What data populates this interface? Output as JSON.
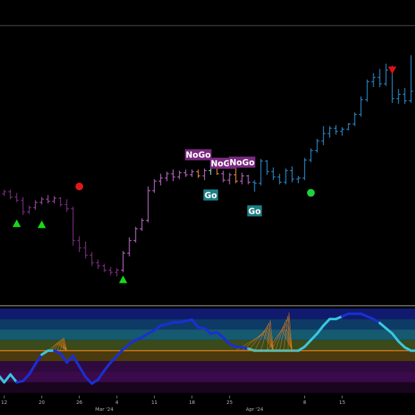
{
  "colors": {
    "background": "#000000",
    "divider": "#bfbfbf",
    "go_tag": "#1f7f86",
    "nogo_tag": "#7a2a80",
    "up_marker": "#18d818",
    "down_marker": "#e01010",
    "dot_red": "#e01818",
    "dot_green": "#1ed23a",
    "zero_line": "#e07a1a",
    "band_colors": [
      "#101a6e",
      "#0e3a66",
      "#155a6e",
      "#3a4a1a",
      "#4a3a0e",
      "#2e0a3e",
      "#3a0a4a",
      "#1a051e"
    ]
  },
  "chart_data": [
    {
      "type": "ohlc",
      "series": [
        {
          "values": [
            {
              "x": 0,
              "o": 103.0,
              "h": 104.0,
              "l": 99.5,
              "c": 101.5,
              "color": "#7b2d82"
            },
            {
              "x": 1,
              "o": 101.5,
              "h": 103.5,
              "l": 100.5,
              "c": 102.5,
              "color": "#7b2d82"
            },
            {
              "x": 2,
              "o": 102.5,
              "h": 103.5,
              "l": 99.0,
              "c": 100.0,
              "color": "#7b2d82"
            },
            {
              "x": 3,
              "o": 100.0,
              "h": 102.0,
              "l": 97.5,
              "c": 98.5,
              "color": "#7b2d82"
            },
            {
              "x": 4,
              "o": 98.5,
              "h": 100.0,
              "l": 91.5,
              "c": 93.0,
              "color": "#7b2d82"
            },
            {
              "x": 5,
              "o": 93.0,
              "h": 96.0,
              "l": 92.0,
              "c": 95.0,
              "color": "#7b2d82"
            },
            {
              "x": 6,
              "o": 95.0,
              "h": 98.5,
              "l": 94.0,
              "c": 97.5,
              "color": "#9a4aa4"
            },
            {
              "x": 7,
              "o": 97.5,
              "h": 100.0,
              "l": 96.5,
              "c": 99.0,
              "color": "#9a4aa4"
            },
            {
              "x": 8,
              "o": 99.0,
              "h": 101.0,
              "l": 97.0,
              "c": 98.0,
              "color": "#9a4aa4"
            },
            {
              "x": 9,
              "o": 98.0,
              "h": 100.5,
              "l": 97.0,
              "c": 99.5,
              "color": "#9a4aa4"
            },
            {
              "x": 10,
              "o": 99.5,
              "h": 100.0,
              "l": 95.5,
              "c": 96.5,
              "color": "#7b2d82"
            },
            {
              "x": 11,
              "o": 96.5,
              "h": 99.0,
              "l": 93.0,
              "c": 94.5,
              "color": "#7b2d82"
            },
            {
              "x": 12,
              "o": 94.5,
              "h": 95.5,
              "l": 77.0,
              "c": 79.5,
              "color": "#7b2d82"
            },
            {
              "x": 13,
              "o": 79.5,
              "h": 81.5,
              "l": 74.0,
              "c": 76.0,
              "color": "#7b2d82"
            },
            {
              "x": 14,
              "o": 76.0,
              "h": 79.0,
              "l": 71.0,
              "c": 72.5,
              "color": "#7b2d82"
            },
            {
              "x": 15,
              "o": 72.5,
              "h": 74.0,
              "l": 67.5,
              "c": 69.0,
              "color": "#7b2d82"
            },
            {
              "x": 16,
              "o": 69.0,
              "h": 70.5,
              "l": 66.0,
              "c": 67.5,
              "color": "#7b2d82"
            },
            {
              "x": 17,
              "o": 67.5,
              "h": 68.5,
              "l": 64.5,
              "c": 65.5,
              "color": "#7b2d82"
            },
            {
              "x": 18,
              "o": 65.5,
              "h": 67.0,
              "l": 63.0,
              "c": 64.5,
              "color": "#7b2d82"
            },
            {
              "x": 19,
              "o": 64.5,
              "h": 66.5,
              "l": 62.5,
              "c": 65.5,
              "color": "#7b2d82"
            },
            {
              "x": 20,
              "o": 65.5,
              "h": 74.5,
              "l": 64.5,
              "c": 73.5,
              "color": "#b267bd"
            },
            {
              "x": 21,
              "o": 73.5,
              "h": 81.0,
              "l": 72.0,
              "c": 79.5,
              "color": "#b267bd"
            },
            {
              "x": 22,
              "o": 79.5,
              "h": 86.0,
              "l": 78.5,
              "c": 85.0,
              "color": "#b267bd"
            },
            {
              "x": 23,
              "o": 85.0,
              "h": 90.0,
              "l": 84.0,
              "c": 89.0,
              "color": "#b267bd"
            },
            {
              "x": 24,
              "o": 89.0,
              "h": 105.0,
              "l": 88.0,
              "c": 103.0,
              "color": "#b267bd"
            },
            {
              "x": 25,
              "o": 103.0,
              "h": 108.5,
              "l": 102.0,
              "c": 107.5,
              "color": "#b267bd"
            },
            {
              "x": 26,
              "o": 107.5,
              "h": 111.0,
              "l": 105.5,
              "c": 109.0,
              "color": "#b267bd"
            },
            {
              "x": 27,
              "o": 109.0,
              "h": 112.0,
              "l": 107.5,
              "c": 111.0,
              "color": "#b267bd"
            },
            {
              "x": 28,
              "o": 111.0,
              "h": 113.0,
              "l": 107.5,
              "c": 109.5,
              "color": "#b267bd"
            },
            {
              "x": 29,
              "o": 109.5,
              "h": 112.5,
              "l": 108.5,
              "c": 111.5,
              "color": "#b267bd"
            },
            {
              "x": 30,
              "o": 111.5,
              "h": 113.0,
              "l": 109.5,
              "c": 110.5,
              "color": "#b267bd"
            },
            {
              "x": 31,
              "o": 110.5,
              "h": 113.0,
              "l": 109.5,
              "c": 112.0,
              "color": "#b267bd"
            },
            {
              "x": 32,
              "o": 112.0,
              "h": 113.0,
              "l": 109.0,
              "c": 110.0,
              "color": "#e0853a"
            },
            {
              "x": 33,
              "o": 110.0,
              "h": 113.5,
              "l": 108.0,
              "c": 112.5,
              "color": "#b267bd"
            },
            {
              "x": 34,
              "o": 112.5,
              "h": 115.5,
              "l": 110.5,
              "c": 114.0,
              "color": "#89d9b8"
            },
            {
              "x": 35,
              "o": 114.0,
              "h": 115.0,
              "l": 110.5,
              "c": 111.0,
              "color": "#e0853a"
            },
            {
              "x": 36,
              "o": 111.0,
              "h": 112.5,
              "l": 107.0,
              "c": 108.0,
              "color": "#b267bd"
            },
            {
              "x": 37,
              "o": 108.0,
              "h": 111.5,
              "l": 106.0,
              "c": 110.5,
              "color": "#b267bd"
            },
            {
              "x": 38,
              "o": 110.5,
              "h": 116.0,
              "l": 106.5,
              "c": 107.5,
              "color": "#e0853a"
            },
            {
              "x": 39,
              "o": 107.5,
              "h": 111.5,
              "l": 106.0,
              "c": 110.0,
              "color": "#b267bd"
            },
            {
              "x": 40,
              "o": 110.0,
              "h": 110.5,
              "l": 106.0,
              "c": 107.0,
              "color": "#b267bd"
            },
            {
              "x": 41,
              "o": 107.0,
              "h": 108.0,
              "l": 102.5,
              "c": 106.5,
              "color": "#2a88c8"
            },
            {
              "x": 42,
              "o": 106.5,
              "h": 118.0,
              "l": 105.5,
              "c": 117.0,
              "color": "#2a88c8"
            },
            {
              "x": 43,
              "o": 117.0,
              "h": 117.5,
              "l": 110.5,
              "c": 112.0,
              "color": "#2a88c8"
            },
            {
              "x": 44,
              "o": 112.0,
              "h": 114.0,
              "l": 108.0,
              "c": 109.5,
              "color": "#2a88c8"
            },
            {
              "x": 45,
              "o": 109.5,
              "h": 111.0,
              "l": 106.0,
              "c": 107.0,
              "color": "#2a88c8"
            },
            {
              "x": 46,
              "o": 107.0,
              "h": 113.5,
              "l": 106.0,
              "c": 112.5,
              "color": "#2a88c8"
            },
            {
              "x": 47,
              "o": 112.5,
              "h": 114.5,
              "l": 107.0,
              "c": 108.5,
              "color": "#2a88c8"
            },
            {
              "x": 48,
              "o": 108.5,
              "h": 110.0,
              "l": 106.5,
              "c": 109.0,
              "color": "#2a88c8"
            },
            {
              "x": 49,
              "o": 109.0,
              "h": 118.5,
              "l": 108.0,
              "c": 117.5,
              "color": "#2a88c8"
            },
            {
              "x": 50,
              "o": 117.5,
              "h": 123.0,
              "l": 116.5,
              "c": 122.0,
              "color": "#2a88c8"
            },
            {
              "x": 51,
              "o": 122.0,
              "h": 127.5,
              "l": 121.0,
              "c": 126.5,
              "color": "#2a88c8"
            },
            {
              "x": 52,
              "o": 126.5,
              "h": 133.5,
              "l": 124.5,
              "c": 130.0,
              "color": "#2a88c8"
            },
            {
              "x": 53,
              "o": 130.0,
              "h": 133.5,
              "l": 128.0,
              "c": 132.5,
              "color": "#2a88c8"
            },
            {
              "x": 54,
              "o": 132.5,
              "h": 134.0,
              "l": 129.5,
              "c": 131.0,
              "color": "#2a88c8"
            },
            {
              "x": 55,
              "o": 131.0,
              "h": 133.0,
              "l": 129.0,
              "c": 132.0,
              "color": "#2a88c8"
            },
            {
              "x": 56,
              "o": 132.0,
              "h": 135.0,
              "l": 131.5,
              "c": 134.5,
              "color": "#2a88c8"
            },
            {
              "x": 57,
              "o": 134.5,
              "h": 140.0,
              "l": 133.5,
              "c": 139.0,
              "color": "#2a88c8"
            },
            {
              "x": 58,
              "o": 139.0,
              "h": 147.5,
              "l": 138.0,
              "c": 146.0,
              "color": "#2a88c8"
            },
            {
              "x": 59,
              "o": 146.0,
              "h": 155.5,
              "l": 145.0,
              "c": 154.5,
              "color": "#2a88c8"
            },
            {
              "x": 60,
              "o": 154.5,
              "h": 158.5,
              "l": 152.0,
              "c": 156.5,
              "color": "#2a88c8"
            },
            {
              "x": 61,
              "o": 156.5,
              "h": 160.5,
              "l": 152.0,
              "c": 153.5,
              "color": "#2a88c8"
            },
            {
              "x": 62,
              "o": 153.5,
              "h": 163.0,
              "l": 152.5,
              "c": 160.0,
              "color": "#2a88c8"
            },
            {
              "x": 63,
              "o": 160.0,
              "h": 162.0,
              "l": 144.5,
              "c": 146.5,
              "color": "#2a88c8"
            },
            {
              "x": 64,
              "o": 146.5,
              "h": 151.0,
              "l": 144.0,
              "c": 148.5,
              "color": "#2a88c8"
            },
            {
              "x": 65,
              "o": 148.5,
              "h": 151.5,
              "l": 144.0,
              "c": 145.5,
              "color": "#2a88c8"
            },
            {
              "x": 66,
              "o": 145.5,
              "h": 167.0,
              "l": 144.5,
              "c": 150.0,
              "color": "#2a88c8"
            },
            {
              "x": 67,
              "o": 150.0,
              "h": 151.5,
              "l": 138.0,
              "c": 141.5,
              "color": "#7ec9a8"
            },
            {
              "x": 68,
              "o": 141.5,
              "h": 144.5,
              "l": 139.5,
              "c": 143.0,
              "color": "#7ec9a8"
            },
            {
              "x": 69,
              "o": 143.0,
              "h": 146.0,
              "l": 136.0,
              "c": 138.0,
              "color": "#7ec9a8"
            }
          ]
        }
      ],
      "tags": [
        {
          "label": "NoGo",
          "bar": 32,
          "price": 120.0,
          "kind": "nogo"
        },
        {
          "label": "Go",
          "bar": 34,
          "price": 101.0,
          "kind": "go"
        },
        {
          "label": "NoGo",
          "bar": 36,
          "price": 116.0,
          "kind": "nogo"
        },
        {
          "label": "NoGo",
          "bar": 39,
          "price": 116.5,
          "kind": "nogo"
        },
        {
          "label": "Go",
          "bar": 41,
          "price": 93.5,
          "kind": "go"
        }
      ],
      "markers": [
        {
          "shape": "triangle-up",
          "bar": 3,
          "price": 87.5,
          "color": "up_marker"
        },
        {
          "shape": "triangle-up",
          "bar": 7,
          "price": 87.0,
          "color": "up_marker"
        },
        {
          "shape": "triangle-up",
          "bar": 20,
          "price": 61.0,
          "color": "up_marker"
        },
        {
          "shape": "triangle-down",
          "bar": 63,
          "price": 160.0,
          "color": "down_marker"
        },
        {
          "shape": "dot",
          "bar": 13,
          "price": 105.0,
          "color": "dot_red"
        },
        {
          "shape": "dot",
          "bar": 50,
          "price": 102.0,
          "color": "dot_green"
        }
      ]
    },
    {
      "type": "line",
      "ylim": [
        -3.2,
        3.2
      ],
      "zero": 0.0,
      "series": [
        {
          "values": [
            -1.8,
            -2.4,
            -1.8,
            -2.4,
            -2.3,
            -1.8,
            -1.0,
            -0.3,
            0.0,
            0.0,
            -0.2,
            -0.9,
            -0.4,
            -1.2,
            -2.0,
            -2.5,
            -2.2,
            -1.5,
            -0.9,
            -0.4,
            0.1,
            0.5,
            0.8,
            1.0,
            1.3,
            1.55,
            1.9,
            2.0,
            2.15,
            2.15,
            2.25,
            2.35,
            1.75,
            1.7,
            1.3,
            1.4,
            1.0,
            0.5,
            0.3,
            0.25,
            0.15,
            0.0,
            0.0,
            0.0,
            0.0,
            0.0,
            0.0,
            0.0,
            0.0,
            0.3,
            0.8,
            1.3,
            1.9,
            2.4,
            2.4,
            2.6,
            2.8,
            2.8,
            2.8,
            2.6,
            2.4,
            2.1,
            1.7,
            1.3,
            0.7,
            0.25,
            0.0,
            0.0,
            0.0,
            0.0
          ],
          "colors": [
            "#39c6e0",
            "#39c6e0",
            "#39c6e0",
            "#39c6e0",
            "#1a2fd4",
            "#1a2fd4",
            "#1a2fd4",
            "#1a2fd4",
            "#39c6e0",
            "#39c6e0",
            "#1a2fd4",
            "#1a2fd4",
            "#1a2fd4",
            "#1a2fd4",
            "#1a2fd4",
            "#1a2fd4",
            "#1a2fd4",
            "#1a2fd4",
            "#1a2fd4",
            "#1a2fd4",
            "#1a2fd4",
            "#1a2fd4",
            "#1a2fd4",
            "#1a2fd4",
            "#1a2fd4",
            "#1a2fd4",
            "#1a2fd4",
            "#1a2fd4",
            "#1a2fd4",
            "#1a2fd4",
            "#1a2fd4",
            "#1a2fd4",
            "#1a2fd4",
            "#1a2fd4",
            "#1a2fd4",
            "#1a2fd4",
            "#1a2fd4",
            "#1a2fd4",
            "#1a2fd4",
            "#1a2fd4",
            "#1a2fd4",
            "#5fb8a8",
            "#5fb8a8",
            "#5fb8a8",
            "#5fb8a8",
            "#5fb8a8",
            "#5fb8a8",
            "#5fb8a8",
            "#5fb8a8",
            "#39c6e0",
            "#39c6e0",
            "#39c6e0",
            "#39c6e0",
            "#39c6e0",
            "#39c6e0",
            "#39c6e0",
            "#1a2fd4",
            "#1a2fd4",
            "#1a2fd4",
            "#1a2fd4",
            "#1a2fd4",
            "#1a2fd4",
            "#39c6e0",
            "#39c6e0",
            "#39c6e0",
            "#39c6e0",
            "#39c6e0",
            "#39c6e0",
            "#39c6e0",
            "#39c6e0"
          ]
        }
      ],
      "bands": [
        {
          "from": 3.2,
          "to": 2.4,
          "color_index": 0
        },
        {
          "from": 2.4,
          "to": 1.6,
          "color_index": 1
        },
        {
          "from": 1.6,
          "to": 0.8,
          "color_index": 2
        },
        {
          "from": 0.8,
          "to": 0.0,
          "color_index": 3
        },
        {
          "from": 0.0,
          "to": -0.8,
          "color_index": 4
        },
        {
          "from": -0.8,
          "to": -1.6,
          "color_index": 5
        },
        {
          "from": -1.6,
          "to": -2.4,
          "color_index": 6
        },
        {
          "from": -2.4,
          "to": -3.2,
          "color_index": 7
        }
      ],
      "spikes": [
        {
          "from": 8,
          "to": 11,
          "peak": 1.0
        },
        {
          "from": 38,
          "to": 44,
          "peak": 2.3
        },
        {
          "from": 43,
          "to": 47,
          "peak": 2.9
        }
      ]
    }
  ],
  "x_axis": {
    "ticks": [
      {
        "bar": 1,
        "label": "12"
      },
      {
        "bar": 7,
        "label": "20"
      },
      {
        "bar": 13,
        "label": "26"
      },
      {
        "bar": 19,
        "label": "4"
      },
      {
        "bar": 25,
        "label": "11"
      },
      {
        "bar": 31,
        "label": "18"
      },
      {
        "bar": 37,
        "label": "25"
      },
      {
        "bar": 49,
        "label": "8"
      },
      {
        "bar": 55,
        "label": "15"
      }
    ],
    "months": [
      {
        "bar": 17,
        "label": "Mar '24"
      },
      {
        "bar": 41,
        "label": "Apr '24"
      }
    ]
  }
}
